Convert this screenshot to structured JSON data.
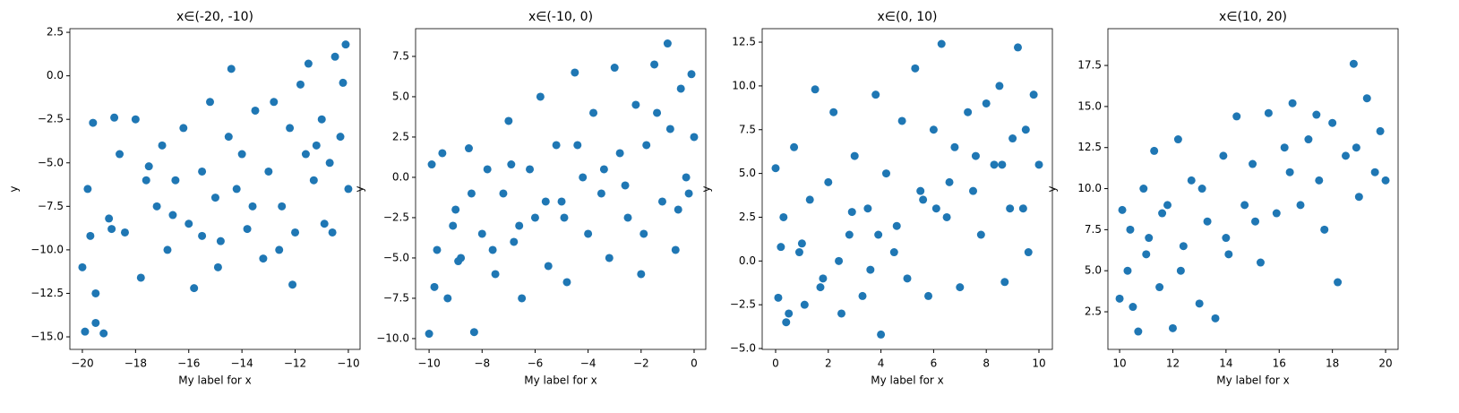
{
  "chart_data": [
    {
      "type": "scatter",
      "title": "x∈(-20, -10)",
      "xlabel": "My label for x",
      "ylabel": "y",
      "color": "#1f77b4",
      "x": [
        -19.9,
        -19.5,
        -19.2,
        -19.5,
        -20,
        -19.8,
        -19.6,
        -19.0,
        -18.8,
        -18.6,
        -18.4,
        -18.0,
        -17.8,
        -17.5,
        -17.2,
        -17.0,
        -16.8,
        -16.5,
        -16.2,
        -16.0,
        -15.8,
        -15.5,
        -15.2,
        -15.0,
        -14.8,
        -14.5,
        -14.4,
        -14.2,
        -14.0,
        -13.8,
        -13.5,
        -13.2,
        -13.0,
        -12.8,
        -12.5,
        -12.2,
        -12.0,
        -11.8,
        -11.6,
        -11.5,
        -11.3,
        -11.0,
        -10.9,
        -10.7,
        -10.5,
        -10.3,
        -10.1,
        -10.0,
        -12.6,
        -13.6,
        -15.5,
        -17.6,
        -18.9,
        -11.2,
        -10.6,
        -14.9,
        -16.6,
        -19.7,
        -12.1,
        -10.2
      ],
      "values": [
        -14.7,
        -14.2,
        -14.8,
        -12.5,
        -11,
        -6.5,
        -2.7,
        -8.2,
        -2.4,
        -4.5,
        -9.0,
        -2.5,
        -11.6,
        -5.2,
        -7.5,
        -4.0,
        -10.0,
        -6.0,
        -3.0,
        -8.5,
        -12.2,
        -5.5,
        -1.5,
        -7.0,
        -9.5,
        -3.5,
        0.4,
        -6.5,
        -4.5,
        -8.8,
        -2.0,
        -10.5,
        -5.5,
        -1.5,
        -7.5,
        -3.0,
        -9.0,
        -0.5,
        -4.5,
        0.7,
        -6.0,
        -2.5,
        -8.5,
        -5.0,
        1.1,
        -3.5,
        1.8,
        -6.5,
        -10.0,
        -7.5,
        -9.2,
        -6.0,
        -8.8,
        -4.0,
        -9.0,
        -11.0,
        -8.0,
        -9.2,
        -12.0,
        -0.4
      ],
      "xlim": [
        -20.47,
        -9.56
      ],
      "ylim": [
        -15.72,
        2.71
      ],
      "xticks": [
        {
          "value": -20,
          "label": "−20"
        },
        {
          "value": -18,
          "label": "−18"
        },
        {
          "value": -16,
          "label": "−16"
        },
        {
          "value": -14,
          "label": "−14"
        },
        {
          "value": -12,
          "label": "−12"
        },
        {
          "value": -10,
          "label": "−10"
        }
      ],
      "yticks": [
        2.5,
        {
          "value": 0,
          "label": "0.0"
        },
        {
          "value": -2.5,
          "label": "−2.5"
        },
        {
          "value": -5,
          "label": "−5.0"
        },
        {
          "value": -7.5,
          "label": "−7.5"
        },
        {
          "value": -10,
          "label": "−10.0"
        },
        {
          "value": -12.5,
          "label": "−12.5"
        },
        {
          "value": -15,
          "label": "−15.0"
        }
      ]
    },
    {
      "type": "scatter",
      "title": "x∈(-10, 0)",
      "xlabel": "My label for x",
      "ylabel": "y",
      "color": "#1f77b4",
      "x": [
        -10,
        -9.9,
        -9.7,
        -9.5,
        -9.3,
        -9.0,
        -8.8,
        -8.5,
        -8.3,
        -8.0,
        -7.8,
        -7.5,
        -7.2,
        -7.0,
        -6.8,
        -6.5,
        -6.2,
        -6.0,
        -5.8,
        -5.5,
        -5.2,
        -5.0,
        -4.8,
        -4.5,
        -4.2,
        -4.0,
        -3.8,
        -3.5,
        -3.2,
        -3.0,
        -2.8,
        -2.5,
        -2.2,
        -2.0,
        -1.8,
        -1.5,
        -1.2,
        -1.0,
        -0.9,
        -0.7,
        -0.5,
        -0.3,
        -0.1,
        0,
        -9.8,
        -8.4,
        -6.6,
        -4.4,
        -2.6,
        -1.4,
        -0.6,
        -3.4,
        -5.6,
        -7.6,
        -9.1,
        -1.9,
        -0.2,
        -4.9,
        -6.9,
        -8.9
      ],
      "values": [
        -9.7,
        0.8,
        -4.5,
        1.5,
        -7.5,
        -2.0,
        -5.0,
        1.8,
        -9.6,
        -3.5,
        0.5,
        -6.0,
        -1.0,
        3.5,
        -4.0,
        -7.5,
        0.5,
        -2.5,
        5.0,
        -5.5,
        2.0,
        -1.5,
        -6.5,
        6.5,
        0.0,
        -3.5,
        4.0,
        -1.0,
        -5.0,
        6.8,
        1.5,
        -2.5,
        4.5,
        -6.0,
        2.0,
        7.0,
        -1.5,
        8.3,
        3.0,
        -4.5,
        5.5,
        0.0,
        6.4,
        2.5,
        -6.8,
        -1.0,
        -3.0,
        2.0,
        -0.5,
        4.0,
        -2.0,
        0.5,
        -1.5,
        -4.5,
        -3.0,
        -3.5,
        -1.0,
        -2.5,
        0.8,
        -5.2
      ],
      "xlim": [
        -10.51,
        0.44
      ],
      "ylim": [
        -10.67,
        9.22
      ],
      "xticks": [
        {
          "value": -10,
          "label": "−10"
        },
        {
          "value": -8,
          "label": "−8"
        },
        {
          "value": -6,
          "label": "−6"
        },
        {
          "value": -4,
          "label": "−4"
        },
        {
          "value": -2,
          "label": "−2"
        },
        0
      ],
      "yticks": [
        7.5,
        {
          "value": 5,
          "label": "5.0"
        },
        2.5,
        {
          "value": 0,
          "label": "0.0"
        },
        {
          "value": -2.5,
          "label": "−2.5"
        },
        {
          "value": -5,
          "label": "−5.0"
        },
        {
          "value": -7.5,
          "label": "−7.5"
        },
        {
          "value": -10,
          "label": "−10.0"
        }
      ]
    },
    {
      "type": "scatter",
      "title": "x∈(0, 10)",
      "xlabel": "My label for x",
      "ylabel": "y",
      "color": "#1f77b4",
      "x": [
        0,
        0.1,
        0.3,
        0.5,
        0.7,
        0.9,
        1.1,
        1.3,
        1.5,
        1.8,
        2.0,
        2.2,
        2.5,
        2.8,
        3.0,
        3.3,
        3.5,
        3.8,
        4.0,
        4.2,
        4.5,
        4.8,
        5.0,
        5.3,
        5.5,
        5.8,
        6.0,
        6.3,
        6.5,
        6.8,
        7.0,
        7.3,
        7.5,
        7.8,
        8.0,
        8.3,
        8.5,
        8.7,
        9.0,
        9.2,
        9.4,
        9.6,
        9.8,
        10,
        0.4,
        1.0,
        2.4,
        3.6,
        4.6,
        5.6,
        6.6,
        7.6,
        8.6,
        9.5,
        3.9,
        1.7,
        0.2,
        2.9,
        6.1,
        8.9
      ],
      "values": [
        5.3,
        -2.1,
        2.5,
        -3.0,
        6.5,
        0.5,
        -2.5,
        3.5,
        9.8,
        -1.0,
        4.5,
        8.5,
        -3.0,
        1.5,
        6.0,
        -2.0,
        3.0,
        9.5,
        -4.2,
        5.0,
        0.5,
        8.0,
        -1.0,
        11.0,
        4.0,
        -2.0,
        7.5,
        12.4,
        2.5,
        6.5,
        -1.5,
        8.5,
        4.0,
        1.5,
        9.0,
        5.5,
        10.0,
        -1.2,
        7.0,
        12.2,
        3.0,
        0.5,
        9.5,
        5.5,
        -3.5,
        1.0,
        0.0,
        -0.5,
        2.0,
        3.5,
        4.5,
        6.0,
        5.5,
        7.5,
        1.5,
        -1.5,
        0.8,
        2.8,
        3.0,
        3.0
      ],
      "xlim": [
        -0.51,
        10.51
      ],
      "ylim": [
        -5.05,
        13.27
      ],
      "xticks": [
        0,
        2,
        4,
        6,
        8,
        10
      ],
      "yticks": [
        12.5,
        {
          "value": 10,
          "label": "10.0"
        },
        7.5,
        {
          "value": 5,
          "label": "5.0"
        },
        2.5,
        {
          "value": 0,
          "label": "0.0"
        },
        {
          "value": -2.5,
          "label": "−2.5"
        },
        {
          "value": -5,
          "label": "−5.0"
        }
      ]
    },
    {
      "type": "scatter",
      "title": "x∈(10, 20)",
      "xlabel": "My label for x",
      "ylabel": "y",
      "color": "#1f77b4",
      "x": [
        10,
        10.1,
        10.3,
        10.5,
        10.7,
        10.9,
        11.1,
        11.3,
        11.5,
        11.8,
        12.0,
        12.2,
        12.4,
        12.7,
        13.0,
        13.3,
        13.6,
        13.9,
        14.1,
        14.4,
        14.7,
        15.0,
        15.3,
        15.6,
        15.9,
        16.2,
        16.5,
        16.8,
        17.1,
        17.4,
        17.7,
        18.0,
        18.2,
        18.5,
        18.8,
        19.0,
        19.3,
        19.6,
        19.8,
        20,
        10.4,
        11.0,
        11.6,
        12.3,
        13.1,
        14.0,
        15.1,
        16.4,
        17.5,
        18.9
      ],
      "values": [
        3.3,
        8.7,
        5.0,
        2.8,
        1.3,
        10.0,
        7.0,
        12.3,
        4.0,
        9.0,
        1.5,
        13.0,
        6.5,
        10.5,
        3.0,
        8.0,
        2.1,
        12.0,
        6.0,
        14.4,
        9.0,
        11.5,
        5.5,
        14.6,
        8.5,
        12.5,
        15.2,
        9.0,
        13.0,
        14.5,
        7.5,
        14.0,
        4.3,
        12.0,
        17.6,
        9.5,
        15.5,
        11.0,
        13.5,
        10.5,
        7.5,
        6.0,
        8.5,
        5.0,
        10.0,
        7.0,
        8.0,
        11.0,
        10.5,
        12.5
      ],
      "xlim": [
        9.56,
        20.47
      ],
      "ylim": [
        0.21,
        19.74
      ],
      "xticks": [
        10,
        12,
        14,
        16,
        18,
        20
      ],
      "yticks": [
        17.5,
        {
          "value": 15,
          "label": "15.0"
        },
        12.5,
        {
          "value": 10,
          "label": "10.0"
        },
        7.5,
        {
          "value": 5,
          "label": "5.0"
        },
        2.5
      ]
    }
  ]
}
